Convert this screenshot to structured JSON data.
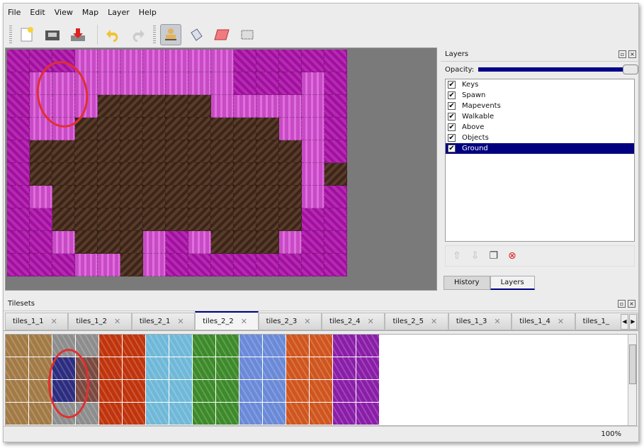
{
  "menu": [
    "File",
    "Edit",
    "View",
    "Map",
    "Layer",
    "Help"
  ],
  "toolbar": [
    "new-icon",
    "open-icon",
    "save-icon",
    "undo-icon",
    "redo-icon",
    "stamp-icon",
    "bucket-fill-icon",
    "eraser-icon",
    "rect-select-icon"
  ],
  "map": {
    "rows": [
      "ppplllllllppppp",
      "plllllllllppplp",
      "pllldddddlllllp",
      "plldddddddddllp",
      "pddddddddddddlp",
      "pddddddddddddldp",
      "pldddddddddddlp",
      "ppdddddddddddpp",
      "ppldddlpldddlpp",
      "ppplldlpppppppp"
    ]
  },
  "layers": {
    "title": "Layers",
    "opacity_label": "Opacity:",
    "opacity": 1.0,
    "items": [
      {
        "name": "Keys",
        "checked": true
      },
      {
        "name": "Spawn",
        "checked": true
      },
      {
        "name": "Mapevents",
        "checked": true
      },
      {
        "name": "Walkable",
        "checked": true
      },
      {
        "name": "Above",
        "checked": true
      },
      {
        "name": "Objects",
        "checked": true
      },
      {
        "name": "Ground",
        "checked": true,
        "selected": true
      }
    ],
    "tabs": [
      "History",
      "Layers"
    ],
    "active_tab": "Layers"
  },
  "tilesets": {
    "title": "Tilesets",
    "tabs": [
      "tiles_1_1",
      "tiles_1_2",
      "tiles_2_1",
      "tiles_2_2",
      "tiles_2_3",
      "tiles_2_4",
      "tiles_2_5",
      "tiles_1_3",
      "tiles_1_4",
      "tiles_1_"
    ],
    "active": "tiles_2_2",
    "colors": [
      "#a27a45",
      "#8d8d8d",
      "#c0340c",
      "#6fb8d8",
      "#3d8a2a",
      "#6a8ad8",
      "#d0551e",
      "#8a1ea8"
    ]
  },
  "status": {
    "zoom": "100%"
  }
}
